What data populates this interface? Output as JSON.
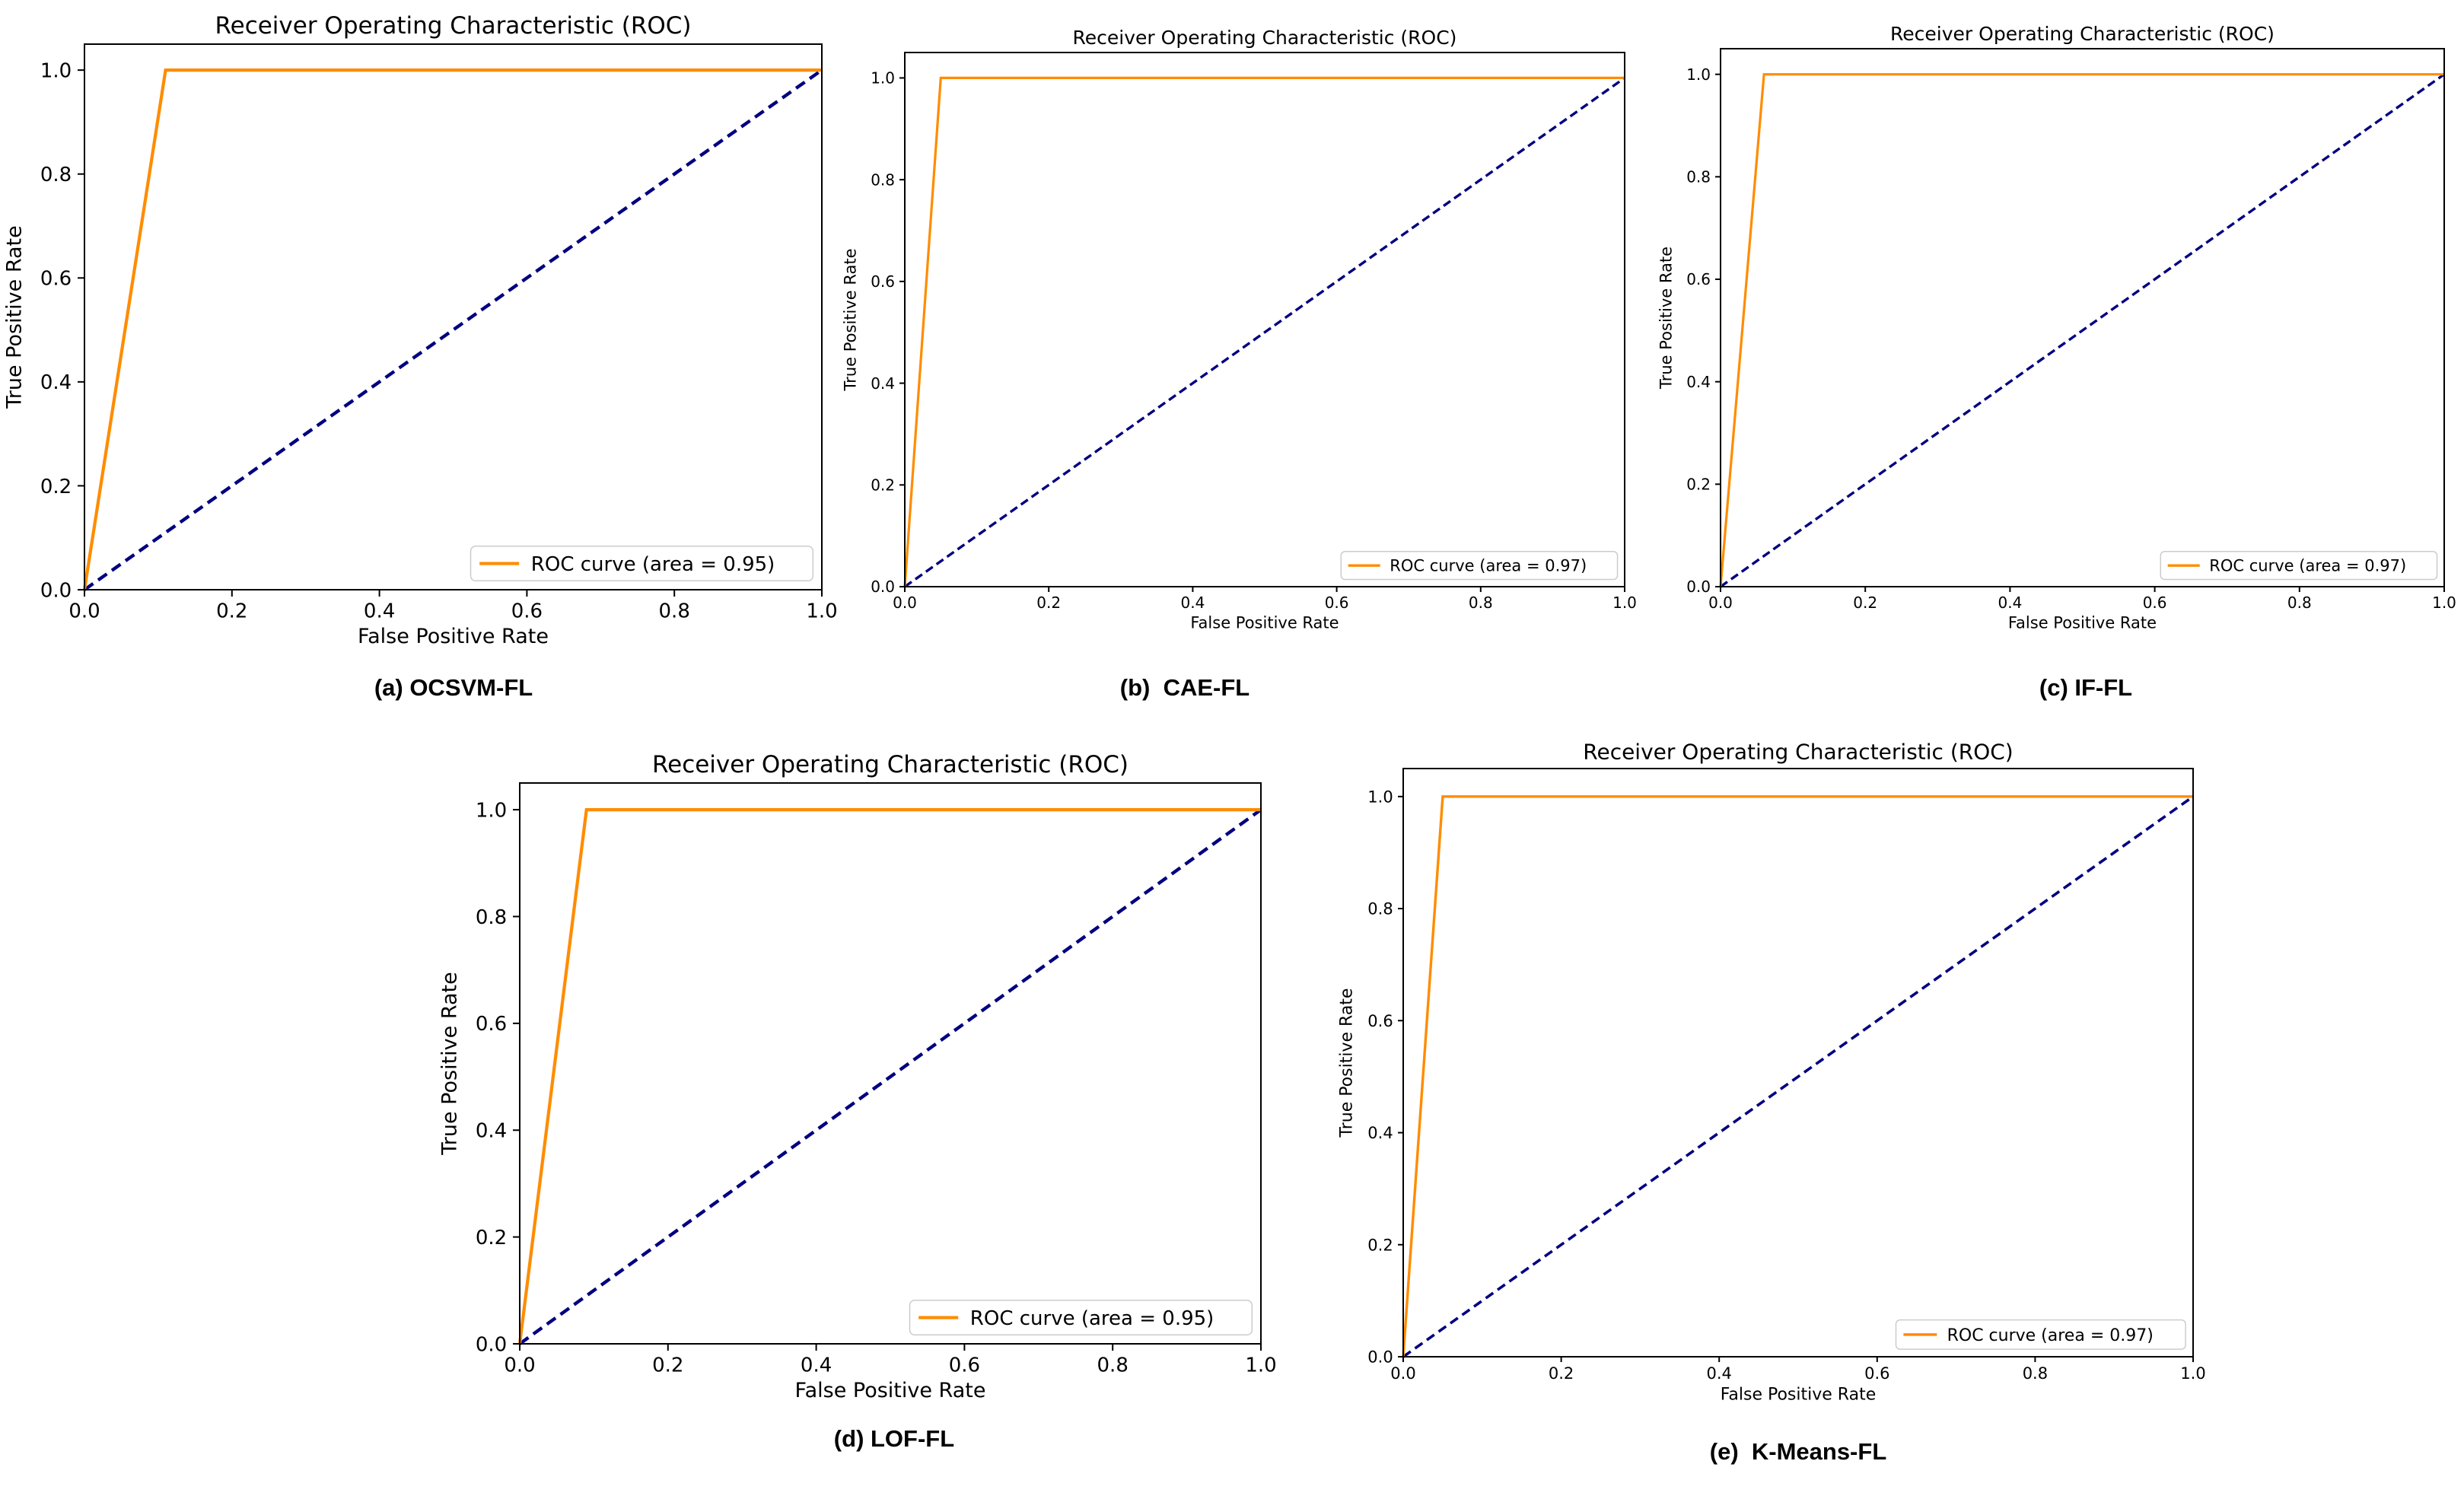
{
  "chart_data": [
    {
      "type": "line",
      "title": "Receiver Operating Characteristic (ROC)",
      "xlabel": "False Positive Rate",
      "ylabel": "True Positive Rate",
      "xlim": [
        0,
        1
      ],
      "ylim": [
        0,
        1.05
      ],
      "xticks": [
        "0.0",
        "0.2",
        "0.4",
        "0.6",
        "0.8",
        "1.0"
      ],
      "yticks": [
        "0.0",
        "0.2",
        "0.4",
        "0.6",
        "0.8",
        "1.0"
      ],
      "grid": false,
      "legend_position": "lower-right",
      "series": [
        {
          "name": "ROC curve (area = 0.95)",
          "color": "#ff8c00",
          "style": "solid",
          "x": [
            0,
            0.11,
            1
          ],
          "y": [
            0,
            1,
            1
          ]
        },
        {
          "color": "#000080",
          "style": "dashed",
          "x": [
            0,
            1
          ],
          "y": [
            0,
            1
          ]
        }
      ],
      "caption": "(a) OCSVM-FL"
    },
    {
      "type": "line",
      "title": "Receiver Operating Characteristic (ROC)",
      "xlabel": "False Positive Rate",
      "ylabel": "True Positive Rate",
      "xlim": [
        0,
        1
      ],
      "ylim": [
        0,
        1.05
      ],
      "xticks": [
        "0.0",
        "0.2",
        "0.4",
        "0.6",
        "0.8",
        "1.0"
      ],
      "yticks": [
        "0.0",
        "0.2",
        "0.4",
        "0.6",
        "0.8",
        "1.0"
      ],
      "grid": false,
      "legend_position": "lower-right",
      "series": [
        {
          "name": "ROC curve (area = 0.97)",
          "color": "#ff8c00",
          "style": "solid",
          "x": [
            0,
            0.05,
            1
          ],
          "y": [
            0,
            1,
            1
          ]
        },
        {
          "color": "#000080",
          "style": "dashed",
          "x": [
            0,
            1
          ],
          "y": [
            0,
            1
          ]
        }
      ],
      "caption": "(b)  CAE-FL"
    },
    {
      "type": "line",
      "title": "Receiver Operating Characteristic (ROC)",
      "xlabel": "False Positive Rate",
      "ylabel": "True Positive Rate",
      "xlim": [
        0,
        1
      ],
      "ylim": [
        0,
        1.05
      ],
      "xticks": [
        "0.0",
        "0.2",
        "0.4",
        "0.6",
        "0.8",
        "1.0"
      ],
      "yticks": [
        "0.0",
        "0.2",
        "0.4",
        "0.6",
        "0.8",
        "1.0"
      ],
      "grid": false,
      "legend_position": "lower-right",
      "series": [
        {
          "name": "ROC curve (area = 0.97)",
          "color": "#ff8c00",
          "style": "solid",
          "x": [
            0,
            0.06,
            1
          ],
          "y": [
            0,
            1,
            1
          ]
        },
        {
          "color": "#000080",
          "style": "dashed",
          "x": [
            0,
            1
          ],
          "y": [
            0,
            1
          ]
        }
      ],
      "caption": "(c) IF-FL"
    },
    {
      "type": "line",
      "title": "Receiver Operating Characteristic (ROC)",
      "xlabel": "False Positive Rate",
      "ylabel": "True Positive Rate",
      "xlim": [
        0,
        1
      ],
      "ylim": [
        0,
        1.05
      ],
      "xticks": [
        "0.0",
        "0.2",
        "0.4",
        "0.6",
        "0.8",
        "1.0"
      ],
      "yticks": [
        "0.0",
        "0.2",
        "0.4",
        "0.6",
        "0.8",
        "1.0"
      ],
      "grid": false,
      "legend_position": "lower-right",
      "series": [
        {
          "name": "ROC curve (area = 0.95)",
          "color": "#ff8c00",
          "style": "solid",
          "x": [
            0,
            0.09,
            1
          ],
          "y": [
            0,
            1,
            1
          ]
        },
        {
          "color": "#000080",
          "style": "dashed",
          "x": [
            0,
            1
          ],
          "y": [
            0,
            1
          ]
        }
      ],
      "caption": "(d) LOF-FL"
    },
    {
      "type": "line",
      "title": "Receiver Operating Characteristic (ROC)",
      "xlabel": "False Positive Rate",
      "ylabel": "True Positive Rate",
      "xlim": [
        0,
        1
      ],
      "ylim": [
        0,
        1.05
      ],
      "xticks": [
        "0.0",
        "0.2",
        "0.4",
        "0.6",
        "0.8",
        "1.0"
      ],
      "yticks": [
        "0.0",
        "0.2",
        "0.4",
        "0.6",
        "0.8",
        "1.0"
      ],
      "grid": false,
      "legend_position": "lower-right",
      "series": [
        {
          "name": "ROC curve (area = 0.97)",
          "color": "#ff8c00",
          "style": "solid",
          "x": [
            0,
            0.05,
            1
          ],
          "y": [
            0,
            1,
            1
          ]
        },
        {
          "color": "#000080",
          "style": "dashed",
          "x": [
            0,
            1
          ],
          "y": [
            0,
            1
          ]
        }
      ],
      "caption": "(e)  K-Means-FL"
    }
  ]
}
